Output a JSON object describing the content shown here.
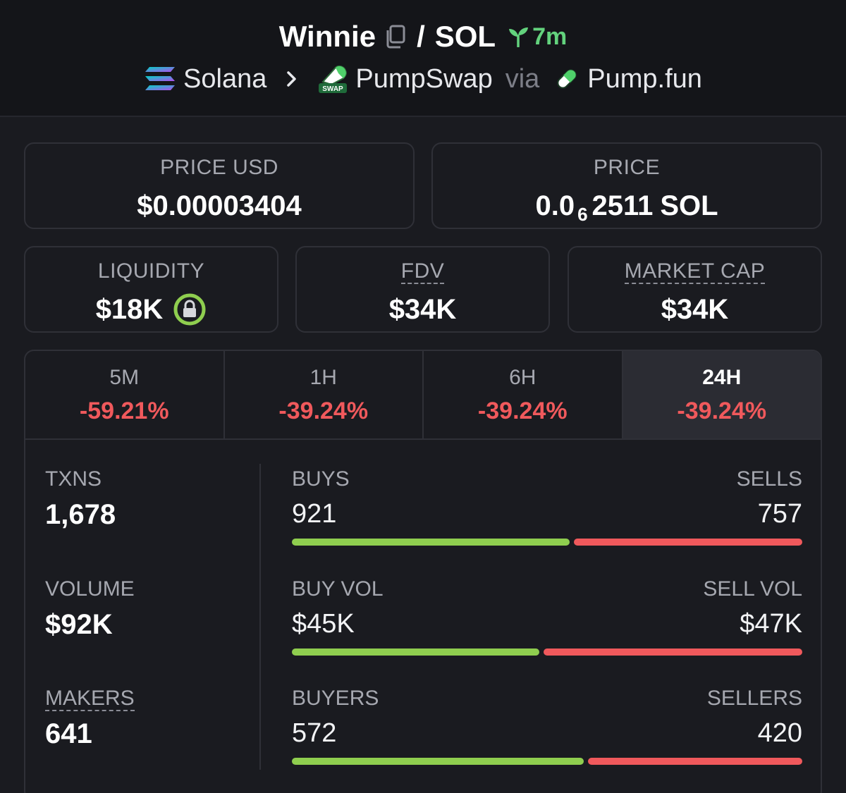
{
  "header": {
    "token": "Winnie",
    "quote": "SOL",
    "slash": "/",
    "age": "7m",
    "chain": "Solana",
    "dex": "PumpSwap",
    "via": "via",
    "launchpad": "Pump.fun",
    "swap_badge": "SWAP",
    "icons": [
      "copy-icon",
      "sprout-icon",
      "solana-logo-icon",
      "chevron-right-icon",
      "pumpswap-logo-icon",
      "pill-icon"
    ],
    "accent_green": "#63d27d"
  },
  "price_usd": {
    "label": "PRICE USD",
    "value": "$0.00003404"
  },
  "price_native": {
    "label": "PRICE",
    "prefix": "0.0",
    "zeros": "6",
    "digits": "2511",
    "unit": "SOL"
  },
  "liquidity": {
    "label": "LIQUIDITY",
    "value": "$18K",
    "locked": true
  },
  "fdv": {
    "label": "FDV",
    "value": "$34K"
  },
  "market_cap": {
    "label": "MARKET CAP",
    "value": "$34K"
  },
  "timeframes": [
    {
      "label": "5M",
      "change": "-59.21%",
      "active": false
    },
    {
      "label": "1H",
      "change": "-39.24%",
      "active": false
    },
    {
      "label": "6H",
      "change": "-39.24%",
      "active": false
    },
    {
      "label": "24H",
      "change": "-39.24%",
      "active": true
    }
  ],
  "stats": {
    "txns": {
      "label": "TXNS",
      "value": "1,678"
    },
    "volume": {
      "label": "VOLUME",
      "value": "$92K"
    },
    "makers": {
      "label": "MAKERS",
      "value": "641"
    },
    "buys": {
      "label": "BUYS",
      "value": "921"
    },
    "sells": {
      "label": "SELLS",
      "value": "757"
    },
    "buy_vol": {
      "label": "BUY VOL",
      "value": "$45K"
    },
    "sell_vol": {
      "label": "SELL VOL",
      "value": "$47K"
    },
    "buyers": {
      "label": "BUYERS",
      "value": "572"
    },
    "sellers": {
      "label": "SELLERS",
      "value": "420"
    },
    "buy_ratio_txns": 0.549,
    "buy_ratio_vol": 0.489,
    "buy_ratio_makers": 0.577
  },
  "colors": {
    "positive": "#8fce4f",
    "negative": "#f0595c",
    "background": "#1a1b20"
  }
}
